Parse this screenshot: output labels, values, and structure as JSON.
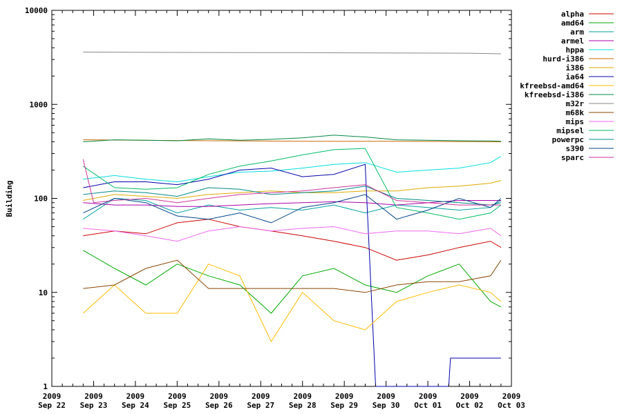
{
  "chart_data": {
    "type": "line",
    "title": "",
    "xlabel": "",
    "ylabel": "Building",
    "yscale": "log",
    "ylim": [
      1,
      10000
    ],
    "yticks": [
      "1",
      "10",
      "100",
      "1000",
      "10000"
    ],
    "xlim": [
      "2009-09-22",
      "2009-10-03"
    ],
    "xticks": [
      {
        "line1": "2009",
        "line2": "Sep 22",
        "date": "2009-09-22"
      },
      {
        "line1": "2009",
        "line2": "Sep 23",
        "date": "2009-09-23"
      },
      {
        "line1": "2009",
        "line2": "Sep 24",
        "date": "2009-09-24"
      },
      {
        "line1": "2009",
        "line2": "Sep 25",
        "date": "2009-09-25"
      },
      {
        "line1": "2009",
        "line2": "Sep 26",
        "date": "2009-09-26"
      },
      {
        "line1": "2009",
        "line2": "Sep 27",
        "date": "2009-09-27"
      },
      {
        "line1": "2009",
        "line2": "Sep 28",
        "date": "2009-09-28"
      },
      {
        "line1": "2009",
        "line2": "Sep 29",
        "date": "2009-09-29"
      },
      {
        "line1": "2009",
        "line2": "Sep 30",
        "date": "2009-09-30"
      },
      {
        "line1": "2009",
        "line2": "Oct 01",
        "date": "2009-10-01"
      },
      {
        "line1": "2009",
        "line2": "Oct 02",
        "date": "2009-10-02"
      },
      {
        "line1": "2009",
        "line2": "Oct 03",
        "date": "2009-10-03"
      }
    ],
    "legend_position": "top-right, outside plot",
    "grid": false,
    "series": [
      {
        "name": "alpha",
        "color": "#cc0000",
        "x": [
          "2009-09-22 18:00",
          "2009-09-23 12:00",
          "2009-09-24 06:00",
          "2009-09-25 00:00",
          "2009-09-25 18:00",
          "2009-09-26 12:00",
          "2009-09-27 06:00",
          "2009-09-28 00:00",
          "2009-09-28 18:00",
          "2009-09-29 12:00",
          "2009-09-30 06:00",
          "2009-10-01 00:00",
          "2009-10-01 18:00",
          "2009-10-02 12:00",
          "2009-10-02 18:00"
        ],
        "y": [
          40,
          45,
          42,
          55,
          60,
          50,
          45,
          40,
          35,
          30,
          22,
          25,
          30,
          35,
          30
        ]
      },
      {
        "name": "amd64",
        "color": "#00aa00",
        "x": [
          "2009-09-22 18:00",
          "2009-09-23 12:00",
          "2009-09-24 06:00",
          "2009-09-25 00:00",
          "2009-09-25 18:00",
          "2009-09-26 12:00",
          "2009-09-27 06:00",
          "2009-09-28 00:00",
          "2009-09-28 18:00",
          "2009-09-29 12:00",
          "2009-09-30 06:00",
          "2009-10-01 00:00",
          "2009-10-01 18:00",
          "2009-10-02 12:00",
          "2009-10-02 18:00"
        ],
        "y": [
          28,
          18,
          12,
          20,
          15,
          12,
          6,
          15,
          18,
          12,
          10,
          15,
          20,
          8,
          7
        ]
      },
      {
        "name": "arm",
        "color": "#00a0a0",
        "x": [
          "2009-09-22 18:00",
          "2009-09-23 12:00",
          "2009-09-24 06:00",
          "2009-09-25 00:00",
          "2009-09-25 18:00",
          "2009-09-26 12:00",
          "2009-09-27 06:00",
          "2009-09-28 00:00",
          "2009-09-28 18:00",
          "2009-09-29 12:00",
          "2009-09-30 06:00",
          "2009-10-01 00:00",
          "2009-10-01 18:00",
          "2009-10-02 12:00",
          "2009-10-02 18:00"
        ],
        "y": [
          60,
          100,
          95,
          70,
          85,
          75,
          80,
          75,
          85,
          70,
          85,
          80,
          75,
          80,
          95
        ]
      },
      {
        "name": "armel",
        "color": "#aa00aa",
        "x": [
          "2009-09-22 18:00",
          "2009-09-23 12:00",
          "2009-09-24 06:00",
          "2009-09-25 00:00",
          "2009-09-25 18:00",
          "2009-09-26 12:00",
          "2009-09-27 06:00",
          "2009-09-28 00:00",
          "2009-09-28 18:00",
          "2009-09-29 12:00",
          "2009-09-30 06:00",
          "2009-10-01 00:00",
          "2009-10-01 18:00",
          "2009-10-02 12:00",
          "2009-10-02 18:00"
        ],
        "y": [
          90,
          85,
          85,
          82,
          82,
          85,
          88,
          90,
          92,
          90,
          85,
          90,
          95,
          95,
          95
        ]
      },
      {
        "name": "hppa",
        "color": "#00dddd",
        "x": [
          "2009-09-22 18:00",
          "2009-09-23 12:00",
          "2009-09-24 06:00",
          "2009-09-25 00:00",
          "2009-09-25 18:00",
          "2009-09-26 12:00",
          "2009-09-27 06:00",
          "2009-09-28 00:00",
          "2009-09-28 18:00",
          "2009-09-29 12:00",
          "2009-09-30 06:00",
          "2009-10-01 00:00",
          "2009-10-01 18:00",
          "2009-10-02 12:00",
          "2009-10-02 18:00"
        ],
        "y": [
          160,
          175,
          160,
          150,
          170,
          190,
          195,
          210,
          230,
          240,
          190,
          200,
          210,
          240,
          280
        ]
      },
      {
        "name": "hurd-i386",
        "color": "#cc6600",
        "x": [
          "2009-09-22 18:00",
          "2009-09-24 00:00",
          "2009-09-26 00:00",
          "2009-09-28 00:00",
          "2009-09-30 00:00",
          "2009-10-02 00:00",
          "2009-10-02 18:00"
        ],
        "y": [
          420,
          415,
          410,
          405,
          405,
          402,
          400
        ]
      },
      {
        "name": "i386",
        "color": "#ddaa00",
        "x": [
          "2009-09-22 18:00",
          "2009-09-23 12:00",
          "2009-09-24 06:00",
          "2009-09-25 00:00",
          "2009-09-25 18:00",
          "2009-09-26 12:00",
          "2009-09-27 06:00",
          "2009-09-28 00:00",
          "2009-09-28 18:00",
          "2009-09-29 12:00",
          "2009-09-30 06:00",
          "2009-10-01 00:00",
          "2009-10-01 18:00",
          "2009-10-02 12:00",
          "2009-10-02 18:00"
        ],
        "y": [
          95,
          110,
          105,
          100,
          110,
          115,
          120,
          115,
          115,
          120,
          120,
          130,
          135,
          145,
          155
        ]
      },
      {
        "name": "ia64",
        "color": "#0000aa",
        "x": [
          "2009-09-22 18:00",
          "2009-09-23 12:00",
          "2009-09-24 06:00",
          "2009-09-25 00:00",
          "2009-09-25 18:00",
          "2009-09-26 12:00",
          "2009-09-27 06:00",
          "2009-09-28 00:00",
          "2009-09-28 18:00",
          "2009-09-29 12:00",
          "2009-09-29 18:00",
          "2009-09-30 00:00",
          "2009-10-01 12:00",
          "2009-10-01 13:00",
          "2009-10-02 18:00"
        ],
        "y": [
          130,
          150,
          150,
          140,
          160,
          200,
          210,
          170,
          180,
          230,
          1,
          1,
          1,
          2,
          2
        ]
      },
      {
        "name": "kfreebsd-amd64",
        "color": "#ffbb00",
        "x": [
          "2009-09-22 18:00",
          "2009-09-23 12:00",
          "2009-09-24 06:00",
          "2009-09-25 00:00",
          "2009-09-25 18:00",
          "2009-09-26 12:00",
          "2009-09-27 06:00",
          "2009-09-28 00:00",
          "2009-09-28 18:00",
          "2009-09-29 12:00",
          "2009-09-30 06:00",
          "2009-10-01 00:00",
          "2009-10-01 18:00",
          "2009-10-02 12:00",
          "2009-10-02 18:00"
        ],
        "y": [
          6,
          12,
          6,
          6,
          20,
          15,
          3,
          10,
          5,
          4,
          8,
          10,
          12,
          10,
          8
        ]
      },
      {
        "name": "kfreebsd-i386",
        "color": "#008844",
        "x": [
          "2009-09-22 18:00",
          "2009-09-23 12:00",
          "2009-09-24 06:00",
          "2009-09-25 00:00",
          "2009-09-25 18:00",
          "2009-09-26 12:00",
          "2009-09-27 06:00",
          "2009-09-28 00:00",
          "2009-09-28 18:00",
          "2009-09-29 12:00",
          "2009-09-30 06:00",
          "2009-10-01 00:00",
          "2009-10-01 18:00",
          "2009-10-02 12:00",
          "2009-10-02 18:00"
        ],
        "y": [
          400,
          420,
          415,
          410,
          430,
          415,
          425,
          440,
          470,
          450,
          420,
          415,
          410,
          408,
          405
        ]
      },
      {
        "name": "m32r",
        "color": "#888888",
        "x": [
          "2009-09-22 18:00",
          "2009-09-24 00:00",
          "2009-09-26 00:00",
          "2009-09-28 00:00",
          "2009-09-30 00:00",
          "2009-10-02 00:00",
          "2009-10-02 18:00"
        ],
        "y": [
          3600,
          3580,
          3560,
          3550,
          3520,
          3500,
          3450
        ]
      },
      {
        "name": "m68k",
        "color": "#884400",
        "x": [
          "2009-09-22 18:00",
          "2009-09-23 12:00",
          "2009-09-24 06:00",
          "2009-09-25 00:00",
          "2009-09-25 18:00",
          "2009-09-26 12:00",
          "2009-09-27 06:00",
          "2009-09-28 00:00",
          "2009-09-28 18:00",
          "2009-09-29 12:00",
          "2009-09-30 06:00",
          "2009-10-01 00:00",
          "2009-10-01 18:00",
          "2009-10-02 12:00",
          "2009-10-02 18:00"
        ],
        "y": [
          11,
          12,
          18,
          22,
          11,
          11,
          11,
          11,
          11,
          10,
          12,
          13,
          13,
          15,
          22
        ]
      },
      {
        "name": "mips",
        "color": "#ee66ee",
        "x": [
          "2009-09-22 18:00",
          "2009-09-23 12:00",
          "2009-09-24 06:00",
          "2009-09-25 00:00",
          "2009-09-25 18:00",
          "2009-09-26 12:00",
          "2009-09-27 06:00",
          "2009-09-28 00:00",
          "2009-09-28 18:00",
          "2009-09-29 12:00",
          "2009-09-30 06:00",
          "2009-10-01 00:00",
          "2009-10-01 18:00",
          "2009-10-02 12:00",
          "2009-10-02 18:00"
        ],
        "y": [
          48,
          45,
          40,
          35,
          45,
          50,
          45,
          48,
          50,
          42,
          45,
          45,
          42,
          48,
          40
        ]
      },
      {
        "name": "mipsel",
        "color": "#00bb66",
        "x": [
          "2009-09-22 18:00",
          "2009-09-23 12:00",
          "2009-09-24 06:00",
          "2009-09-25 00:00",
          "2009-09-25 18:00",
          "2009-09-26 12:00",
          "2009-09-27 06:00",
          "2009-09-28 00:00",
          "2009-09-28 18:00",
          "2009-09-29 12:00",
          "2009-09-30 06:00",
          "2009-10-01 00:00",
          "2009-10-01 18:00",
          "2009-10-02 12:00",
          "2009-10-02 18:00"
        ],
        "y": [
          220,
          130,
          125,
          130,
          180,
          220,
          250,
          290,
          330,
          340,
          80,
          70,
          60,
          70,
          85
        ]
      },
      {
        "name": "powerpc",
        "color": "#008888",
        "x": [
          "2009-09-22 18:00",
          "2009-09-23 12:00",
          "2009-09-24 06:00",
          "2009-09-25 00:00",
          "2009-09-25 18:00",
          "2009-09-26 12:00",
          "2009-09-27 06:00",
          "2009-09-28 00:00",
          "2009-09-28 18:00",
          "2009-09-29 12:00",
          "2009-09-30 06:00",
          "2009-10-01 00:00",
          "2009-10-01 18:00",
          "2009-10-02 12:00",
          "2009-10-02 18:00"
        ],
        "y": [
          110,
          120,
          115,
          105,
          130,
          125,
          110,
          115,
          120,
          135,
          100,
          95,
          90,
          85,
          90
        ]
      },
      {
        "name": "s390",
        "color": "#004488",
        "x": [
          "2009-09-22 18:00",
          "2009-09-23 12:00",
          "2009-09-24 06:00",
          "2009-09-25 00:00",
          "2009-09-25 18:00",
          "2009-09-26 12:00",
          "2009-09-27 06:00",
          "2009-09-28 00:00",
          "2009-09-28 18:00",
          "2009-09-29 12:00",
          "2009-09-30 06:00",
          "2009-10-01 00:00",
          "2009-10-01 18:00",
          "2009-10-02 12:00",
          "2009-10-02 18:00"
        ],
        "y": [
          70,
          100,
          90,
          65,
          60,
          70,
          55,
          80,
          90,
          110,
          60,
          75,
          100,
          80,
          100
        ]
      },
      {
        "name": "sparc",
        "color": "#cc3399",
        "x": [
          "2009-09-22 18:00",
          "2009-09-23 00:00",
          "2009-09-23 12:00",
          "2009-09-24 06:00",
          "2009-09-25 00:00",
          "2009-09-25 18:00",
          "2009-09-26 12:00",
          "2009-09-27 06:00",
          "2009-09-28 00:00",
          "2009-09-28 18:00",
          "2009-09-29 12:00",
          "2009-09-30 06:00",
          "2009-10-01 00:00",
          "2009-10-01 18:00",
          "2009-10-02 18:00"
        ],
        "y": [
          260,
          90,
          95,
          100,
          90,
          100,
          110,
          115,
          120,
          130,
          140,
          95,
          90,
          85,
          85
        ]
      }
    ]
  }
}
